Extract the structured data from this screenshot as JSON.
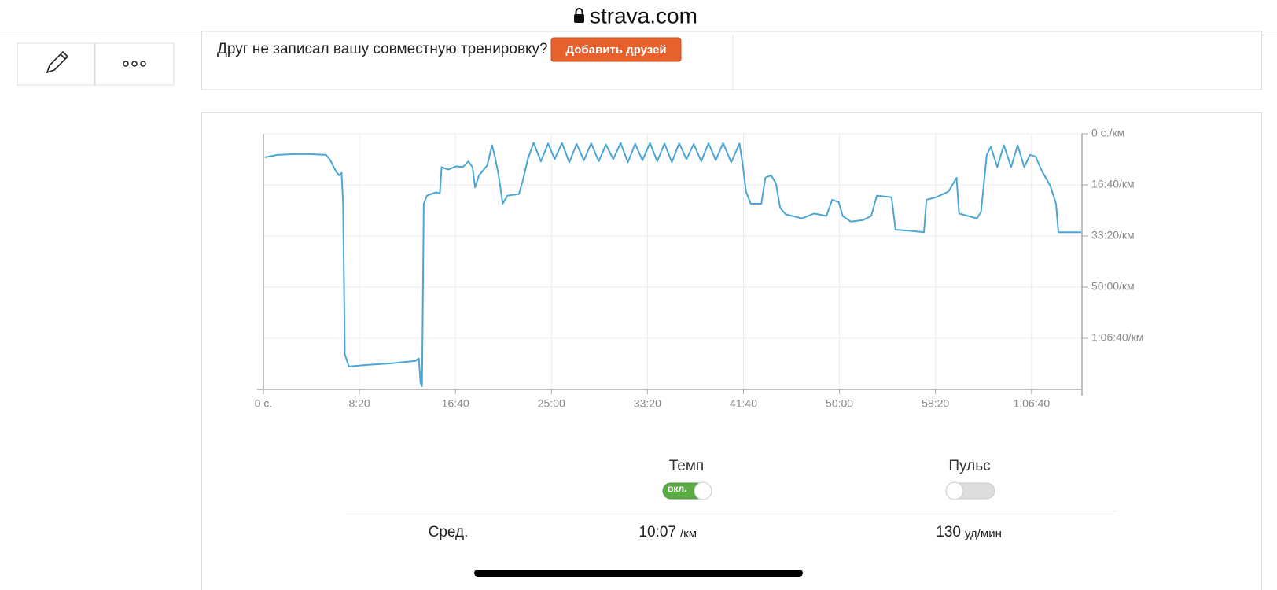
{
  "browser": {
    "url": "strava.com"
  },
  "prompt": {
    "text": "Друг не записал вашу совместную тренировку?",
    "button": "Добавить друзей"
  },
  "chart_data": {
    "type": "line",
    "x": [
      8,
      72,
      157,
      241,
      326,
      347,
      377,
      394,
      407,
      415,
      424,
      445,
      538,
      665,
      792,
      809,
      818,
      826,
      835,
      852,
      898,
      919,
      928,
      962,
      1004,
      1038,
      1068,
      1089,
      1102,
      1123,
      1165,
      1191,
      1208,
      1225,
      1246,
      1271,
      1331,
      1352,
      1377,
      1407,
      1445,
      1483,
      1517,
      1555,
      1593,
      1631,
      1669,
      1707,
      1746,
      1784,
      1822,
      1860,
      1898,
      1936,
      1974,
      2013,
      2051,
      2089,
      2127,
      2165,
      2203,
      2241,
      2280,
      2318,
      2356,
      2394,
      2436,
      2479,
      2495,
      2513,
      2538,
      2593,
      2614,
      2644,
      2669,
      2691,
      2720,
      2805,
      2868,
      2932,
      2962,
      2996,
      3017,
      3059,
      3123,
      3165,
      3195,
      3271,
      3292,
      3356,
      3440,
      3453,
      3504,
      3568,
      3610,
      3623,
      3716,
      3737,
      3767,
      3788,
      3822,
      3856,
      3894,
      3928,
      3962,
      3992,
      4021,
      4055,
      4098,
      4128,
      4140,
      4259
    ],
    "series": [
      {
        "color": "#4ba6d5",
        "values": [
          462,
          414,
          398,
          398,
          414,
          509,
          732,
          812,
          764,
          1369,
          4315,
          4553,
          4521,
          4490,
          4442,
          4394,
          4872,
          4935,
          1369,
          1210,
          1146,
          1162,
          653,
          701,
          637,
          653,
          541,
          653,
          1051,
          812,
          621,
          223,
          494,
          812,
          1369,
          1210,
          1178,
          892,
          494,
          175,
          541,
          190,
          500,
          180,
          560,
          200,
          520,
          185,
          540,
          210,
          500,
          180,
          560,
          195,
          520,
          180,
          540,
          190,
          560,
          185,
          500,
          200,
          540,
          185,
          520,
          180,
          560,
          190,
          573,
          1130,
          1369,
          1369,
          860,
          812,
          971,
          1449,
          1576,
          1656,
          1560,
          1608,
          1290,
          1337,
          1608,
          1719,
          1687,
          1608,
          1210,
          1242,
          1879,
          1894,
          1926,
          1290,
          1242,
          1130,
          860,
          1560,
          1656,
          1528,
          414,
          255,
          653,
          223,
          653,
          223,
          653,
          414,
          446,
          732,
          1019,
          1369,
          1926,
          1926
        ]
      }
    ],
    "xlim": [
      0,
      4263
    ],
    "ylim": [
      0,
      5000
    ],
    "y_reversed": true,
    "xticks": [
      {
        "value": 0,
        "label": "0 с."
      },
      {
        "value": 500,
        "label": "8:20"
      },
      {
        "value": 1000,
        "label": "16:40"
      },
      {
        "value": 1500,
        "label": "25:00"
      },
      {
        "value": 2000,
        "label": "33:20"
      },
      {
        "value": 2500,
        "label": "41:40"
      },
      {
        "value": 3000,
        "label": "50:00"
      },
      {
        "value": 3500,
        "label": "58:20"
      },
      {
        "value": 4000,
        "label": "1:06:40"
      }
    ],
    "yticks": [
      {
        "value": 0,
        "label": "0 с./км"
      },
      {
        "value": 1000,
        "label": "16:40/км"
      },
      {
        "value": 2000,
        "label": "33:20/км"
      },
      {
        "value": 3000,
        "label": "50:00/км"
      },
      {
        "value": 4000,
        "label": "1:06:40/км"
      }
    ],
    "grid": true
  },
  "toggles": [
    {
      "label": "Темп",
      "on": true,
      "state": "вкл."
    },
    {
      "label": "Пульс",
      "on": false
    }
  ],
  "summary": {
    "label": "Сред.",
    "pace": "10:07",
    "pace_unit": "/км",
    "heart_rate": "130",
    "heart_rate_unit": "уд/мин"
  }
}
